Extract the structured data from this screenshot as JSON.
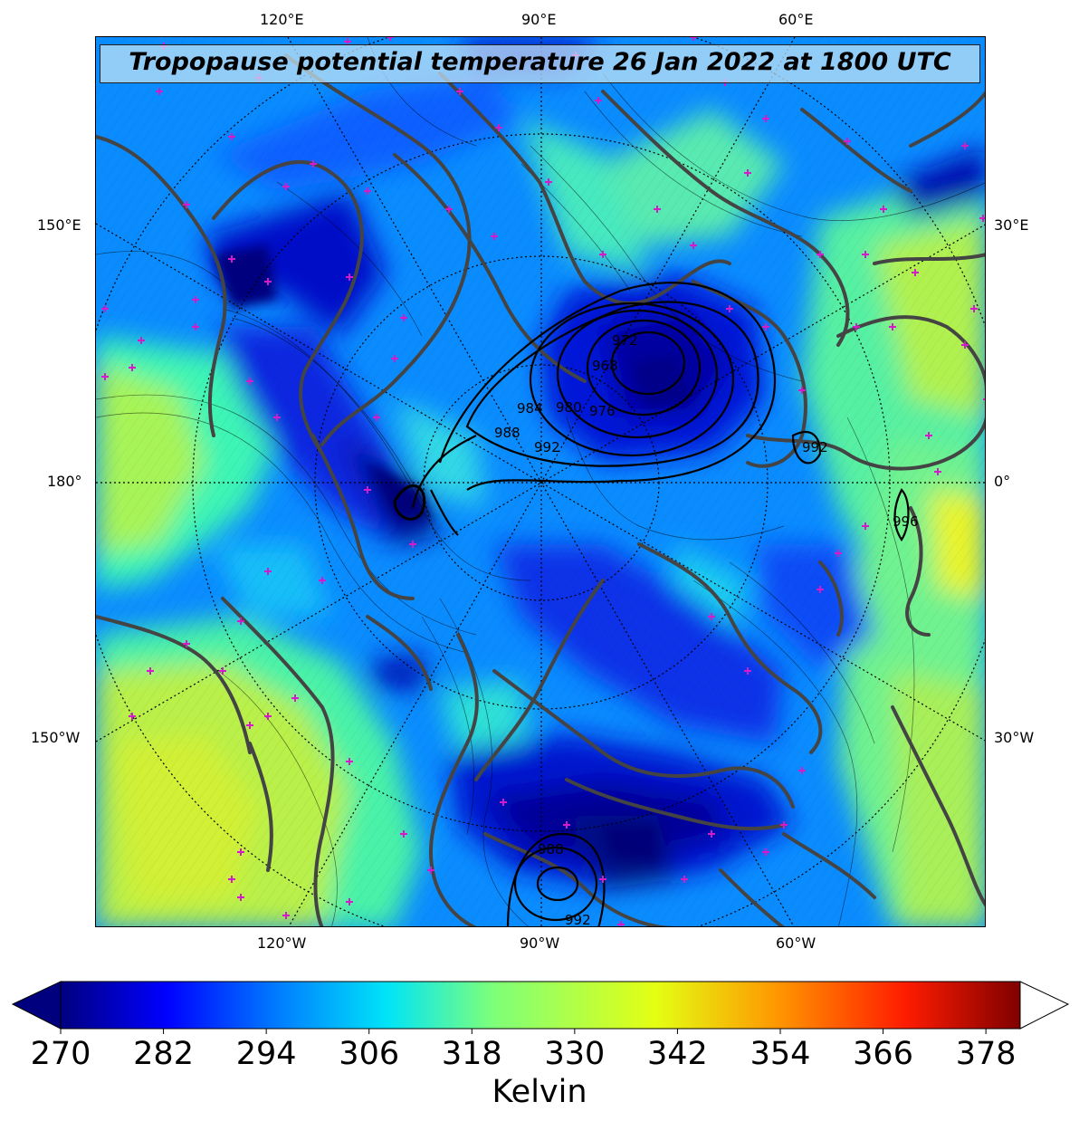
{
  "title": "Tropopause potential temperature 26 Jan 2022 at 1800 UTC",
  "top_ticks": [
    "120°E",
    "90°E",
    "60°E"
  ],
  "bottom_ticks": [
    "120°W",
    "90°W",
    "60°W"
  ],
  "left_ticks": [
    "150°E",
    "180°",
    "150°W"
  ],
  "right_ticks": [
    "30°E",
    "0°",
    "30°W"
  ],
  "colorbar": {
    "ticks": [
      "270",
      "282",
      "294",
      "306",
      "318",
      "330",
      "342",
      "354",
      "366",
      "378"
    ],
    "label": "Kelvin",
    "min": 270,
    "max": 382,
    "colors": [
      "#00007f",
      "#0000ff",
      "#0080ff",
      "#00e4f8",
      "#7dff7a",
      "#e4ff13",
      "#ff9400",
      "#ff1c00",
      "#7f0000"
    ]
  },
  "pressure_labels": [
    {
      "text": "972"
    },
    {
      "text": "968"
    },
    {
      "text": "976"
    },
    {
      "text": "980"
    },
    {
      "text": "984"
    },
    {
      "text": "988"
    },
    {
      "text": "992"
    },
    {
      "text": "992"
    },
    {
      "text": "996"
    },
    {
      "text": "988"
    },
    {
      "text": "992"
    }
  ]
}
